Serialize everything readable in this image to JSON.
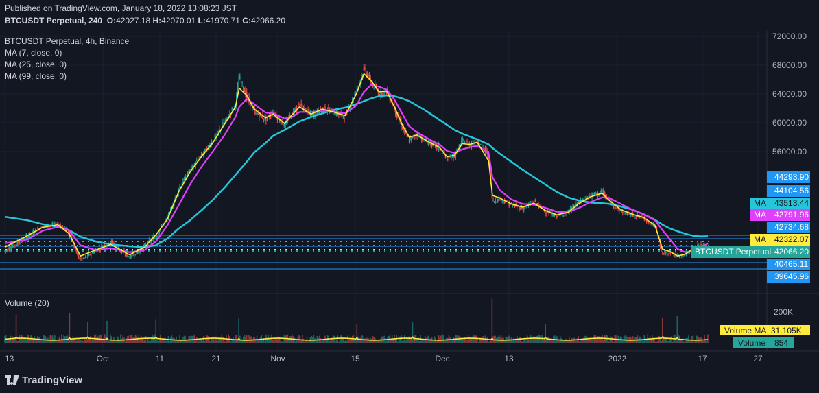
{
  "header": {
    "published": "Published on TradingView.com, January 18, 2022 13:08:23 JST",
    "symbol": "BTCUSDT Perpetual, 240",
    "o_label": "O:",
    "o": "42027.18",
    "h_label": "H:",
    "h": "42070.01",
    "l_label": "L:",
    "l": "41970.71",
    "c_label": "C:",
    "c": "42066.20",
    "exchange": "BTCUSDT Perpetual, 4h, Binance",
    "ma1": "MA (7, close, 0)",
    "ma2": "MA (25, close, 0)",
    "ma3": "MA (99, close, 0)",
    "volume_title": "Volume (20)"
  },
  "brand": "TradingView",
  "colors": {
    "background": "#131722",
    "up": "#26a69a",
    "down": "#ef5350",
    "ma7": "#ffeb3b",
    "ma25": "#e040fb",
    "ma99": "#26c6da",
    "volume_ma": "#ffeb3b",
    "grid": "#1e222d"
  },
  "chart_data": {
    "type": "candlestick",
    "symbol": "BTCUSDT Perpetual",
    "interval": "4h",
    "price_axis_ticks": [
      "72000.00",
      "68000.00",
      "64000.00",
      "60000.00",
      "56000.00"
    ],
    "price_axis_labels_low": [
      {
        "value": 44293.9,
        "text": "44293.90",
        "color": "#2196f3",
        "text_color": "#ffffff"
      },
      {
        "value": 44104.56,
        "text": "44104.56",
        "color": "#2196f3",
        "text_color": "#ffffff"
      },
      {
        "value": 43513.44,
        "text": "43513.44",
        "color": "#26c6da",
        "text_color": "#131722",
        "tag": "MA"
      },
      {
        "value": 42791.96,
        "text": "42791.96",
        "color": "#e040fb",
        "text_color": "#ffffff",
        "tag": "MA"
      },
      {
        "value": 42734.68,
        "text": "42734.68",
        "color": "#2196f3",
        "text_color": "#ffffff"
      },
      {
        "value": 42322.07,
        "text": "42322.07",
        "color": "#ffeb3b",
        "text_color": "#131722",
        "tag": "MA"
      },
      {
        "value": 42066.2,
        "text": "42066.20",
        "color": "#26a69a",
        "text_color": "#ffffff",
        "tag": "BTCUSDT Perpetual"
      },
      {
        "value": 40465.11,
        "text": "40465.11",
        "color": "#2196f3",
        "text_color": "#ffffff"
      },
      {
        "value": 39645.96,
        "text": "39645.96",
        "color": "#2196f3",
        "text_color": "#ffffff"
      }
    ],
    "x_axis_labels": [
      "13",
      "Oct",
      "11",
      "21",
      "Nov",
      "15",
      "Dec",
      "13",
      "2022",
      "17",
      "27"
    ],
    "price_path": [
      [
        0,
        42000
      ],
      [
        6,
        43500
      ],
      [
        10,
        45000
      ],
      [
        14,
        45500
      ],
      [
        17,
        44000
      ],
      [
        20,
        40500
      ],
      [
        24,
        42000
      ],
      [
        28,
        43000
      ],
      [
        33,
        41000
      ],
      [
        37,
        42500
      ],
      [
        40,
        43500
      ],
      [
        43,
        46500
      ],
      [
        46,
        51000
      ],
      [
        49,
        53500
      ],
      [
        52,
        55500
      ],
      [
        55,
        57500
      ],
      [
        58,
        60000
      ],
      [
        61,
        62500
      ],
      [
        62,
        66500
      ],
      [
        64,
        63500
      ],
      [
        66,
        61500
      ],
      [
        69,
        60500
      ],
      [
        71,
        61500
      ],
      [
        74,
        59500
      ],
      [
        76,
        61500
      ],
      [
        78,
        62500
      ],
      [
        81,
        61000
      ],
      [
        84,
        62000
      ],
      [
        87,
        61500
      ],
      [
        90,
        60800
      ],
      [
        93,
        64500
      ],
      [
        95,
        67500
      ],
      [
        97,
        65500
      ],
      [
        99,
        64000
      ],
      [
        101,
        64500
      ],
      [
        103,
        62000
      ],
      [
        105,
        59500
      ],
      [
        107,
        57500
      ],
      [
        109,
        58500
      ],
      [
        111,
        57500
      ],
      [
        113,
        57000
      ],
      [
        115,
        56500
      ],
      [
        117,
        55000
      ],
      [
        119,
        55500
      ],
      [
        121,
        57500
      ],
      [
        123,
        57000
      ],
      [
        125,
        57500
      ],
      [
        128,
        55500
      ],
      [
        129,
        49000
      ],
      [
        131,
        49500
      ],
      [
        134,
        48500
      ],
      [
        137,
        48000
      ],
      [
        140,
        49000
      ],
      [
        143,
        47500
      ],
      [
        146,
        46800
      ],
      [
        149,
        47500
      ],
      [
        152,
        49000
      ],
      [
        155,
        50000
      ],
      [
        158,
        50500
      ],
      [
        160,
        49000
      ],
      [
        163,
        47500
      ],
      [
        166,
        47000
      ],
      [
        169,
        46500
      ],
      [
        172,
        45000
      ],
      [
        174,
        41500
      ],
      [
        176,
        41800
      ],
      [
        178,
        41000
      ],
      [
        180,
        41500
      ],
      [
        182,
        42300
      ],
      [
        184,
        42500
      ],
      [
        186,
        42066
      ]
    ],
    "ma7_path": [
      [
        0,
        42400
      ],
      [
        6,
        43600
      ],
      [
        10,
        44800
      ],
      [
        14,
        45300
      ],
      [
        17,
        43800
      ],
      [
        20,
        41200
      ],
      [
        24,
        42100
      ],
      [
        28,
        42700
      ],
      [
        33,
        41400
      ],
      [
        37,
        42400
      ],
      [
        40,
        43700
      ],
      [
        43,
        46300
      ],
      [
        46,
        50500
      ],
      [
        49,
        53200
      ],
      [
        52,
        55300
      ],
      [
        55,
        57200
      ],
      [
        58,
        59700
      ],
      [
        61,
        62200
      ],
      [
        62,
        64800
      ],
      [
        64,
        63800
      ],
      [
        66,
        61900
      ],
      [
        69,
        60700
      ],
      [
        71,
        61200
      ],
      [
        74,
        59900
      ],
      [
        76,
        61100
      ],
      [
        78,
        62200
      ],
      [
        81,
        61200
      ],
      [
        84,
        61900
      ],
      [
        87,
        61500
      ],
      [
        90,
        61000
      ],
      [
        93,
        64000
      ],
      [
        95,
        66800
      ],
      [
        97,
        65800
      ],
      [
        99,
        64300
      ],
      [
        101,
        64400
      ],
      [
        103,
        62300
      ],
      [
        105,
        59900
      ],
      [
        107,
        58000
      ],
      [
        109,
        58300
      ],
      [
        111,
        57700
      ],
      [
        113,
        57100
      ],
      [
        115,
        56600
      ],
      [
        117,
        55300
      ],
      [
        119,
        55500
      ],
      [
        121,
        57100
      ],
      [
        123,
        57000
      ],
      [
        125,
        57300
      ],
      [
        128,
        54700
      ],
      [
        129,
        50000
      ],
      [
        131,
        49600
      ],
      [
        134,
        48700
      ],
      [
        137,
        48200
      ],
      [
        140,
        48800
      ],
      [
        143,
        47700
      ],
      [
        146,
        47000
      ],
      [
        149,
        47400
      ],
      [
        152,
        48800
      ],
      [
        155,
        49800
      ],
      [
        158,
        50300
      ],
      [
        160,
        49200
      ],
      [
        163,
        47800
      ],
      [
        166,
        47100
      ],
      [
        169,
        46600
      ],
      [
        172,
        45200
      ],
      [
        174,
        42200
      ],
      [
        176,
        41900
      ],
      [
        178,
        41200
      ],
      [
        180,
        41500
      ],
      [
        182,
        42200
      ],
      [
        184,
        42400
      ],
      [
        186,
        42322
      ]
    ],
    "ma25_path": [
      [
        0,
        42800
      ],
      [
        6,
        43200
      ],
      [
        10,
        44200
      ],
      [
        14,
        44900
      ],
      [
        17,
        44300
      ],
      [
        20,
        42600
      ],
      [
        24,
        42100
      ],
      [
        28,
        42300
      ],
      [
        33,
        41800
      ],
      [
        37,
        42100
      ],
      [
        40,
        43000
      ],
      [
        43,
        45200
      ],
      [
        46,
        48500
      ],
      [
        49,
        51500
      ],
      [
        52,
        53900
      ],
      [
        55,
        56000
      ],
      [
        58,
        58200
      ],
      [
        61,
        60800
      ],
      [
        62,
        62200
      ],
      [
        64,
        63300
      ],
      [
        66,
        62600
      ],
      [
        69,
        61400
      ],
      [
        71,
        61300
      ],
      [
        74,
        60600
      ],
      [
        76,
        60800
      ],
      [
        78,
        61500
      ],
      [
        81,
        61500
      ],
      [
        84,
        61600
      ],
      [
        87,
        61600
      ],
      [
        90,
        61300
      ],
      [
        93,
        62400
      ],
      [
        95,
        64300
      ],
      [
        97,
        65300
      ],
      [
        99,
        65000
      ],
      [
        101,
        64600
      ],
      [
        103,
        63300
      ],
      [
        105,
        61400
      ],
      [
        107,
        59500
      ],
      [
        109,
        58700
      ],
      [
        111,
        58100
      ],
      [
        113,
        57500
      ],
      [
        115,
        57000
      ],
      [
        117,
        56100
      ],
      [
        119,
        55800
      ],
      [
        121,
        56300
      ],
      [
        123,
        56600
      ],
      [
        125,
        56800
      ],
      [
        128,
        55800
      ],
      [
        129,
        52500
      ],
      [
        131,
        50700
      ],
      [
        134,
        49400
      ],
      [
        137,
        48700
      ],
      [
        140,
        48600
      ],
      [
        143,
        48100
      ],
      [
        146,
        47500
      ],
      [
        149,
        47400
      ],
      [
        152,
        48100
      ],
      [
        155,
        49000
      ],
      [
        158,
        49700
      ],
      [
        160,
        49600
      ],
      [
        163,
        48700
      ],
      [
        166,
        47800
      ],
      [
        169,
        47100
      ],
      [
        172,
        46100
      ],
      [
        174,
        44300
      ],
      [
        176,
        43200
      ],
      [
        178,
        42200
      ],
      [
        180,
        41800
      ],
      [
        182,
        42000
      ],
      [
        184,
        42300
      ],
      [
        186,
        42792
      ]
    ],
    "ma99_path": [
      [
        0,
        46700
      ],
      [
        6,
        46100
      ],
      [
        10,
        45400
      ],
      [
        14,
        44900
      ],
      [
        17,
        44300
      ],
      [
        20,
        43500
      ],
      [
        24,
        43000
      ],
      [
        28,
        42700
      ],
      [
        33,
        42500
      ],
      [
        37,
        42400
      ],
      [
        40,
        42600
      ],
      [
        43,
        43300
      ],
      [
        46,
        44600
      ],
      [
        49,
        46100
      ],
      [
        52,
        47700
      ],
      [
        55,
        49300
      ],
      [
        58,
        51000
      ],
      [
        61,
        52800
      ],
      [
        64,
        54600
      ],
      [
        66,
        55900
      ],
      [
        69,
        57200
      ],
      [
        71,
        58200
      ],
      [
        74,
        59000
      ],
      [
        76,
        59600
      ],
      [
        78,
        60200
      ],
      [
        81,
        60800
      ],
      [
        84,
        61300
      ],
      [
        87,
        61800
      ],
      [
        90,
        62100
      ],
      [
        93,
        62600
      ],
      [
        95,
        63000
      ],
      [
        97,
        63400
      ],
      [
        99,
        63700
      ],
      [
        101,
        63800
      ],
      [
        103,
        63700
      ],
      [
        105,
        63400
      ],
      [
        107,
        63000
      ],
      [
        109,
        62400
      ],
      [
        111,
        61800
      ],
      [
        113,
        61100
      ],
      [
        115,
        60400
      ],
      [
        117,
        59700
      ],
      [
        119,
        59000
      ],
      [
        121,
        58500
      ],
      [
        123,
        58100
      ],
      [
        125,
        57700
      ],
      [
        128,
        57000
      ],
      [
        129,
        56500
      ],
      [
        131,
        55700
      ],
      [
        134,
        54600
      ],
      [
        137,
        53500
      ],
      [
        140,
        52500
      ],
      [
        143,
        51500
      ],
      [
        146,
        50500
      ],
      [
        149,
        49700
      ],
      [
        152,
        49200
      ],
      [
        155,
        48900
      ],
      [
        158,
        48800
      ],
      [
        160,
        48700
      ],
      [
        163,
        48300
      ],
      [
        166,
        47800
      ],
      [
        169,
        47100
      ],
      [
        172,
        46200
      ],
      [
        174,
        45300
      ],
      [
        176,
        44600
      ],
      [
        178,
        44100
      ],
      [
        180,
        43800
      ],
      [
        182,
        43600
      ],
      [
        184,
        43500
      ],
      [
        186,
        43513
      ]
    ],
    "volume_ma_value": "31.105K",
    "volume_last": "854",
    "volume_tick": "200K",
    "volume_tag_ma": "Volume MA",
    "volume_tag": "Volume",
    "volume_spikes": [
      {
        "x": 3,
        "v": 180
      },
      {
        "x": 17,
        "v": 190
      },
      {
        "x": 22,
        "v": 130
      },
      {
        "x": 27,
        "v": 140
      },
      {
        "x": 40,
        "v": 150
      },
      {
        "x": 62,
        "v": 160
      },
      {
        "x": 93,
        "v": 120
      },
      {
        "x": 108,
        "v": 130
      },
      {
        "x": 129,
        "v": 280
      },
      {
        "x": 143,
        "v": 120
      },
      {
        "x": 174,
        "v": 160
      },
      {
        "x": 178,
        "v": 170
      }
    ]
  }
}
